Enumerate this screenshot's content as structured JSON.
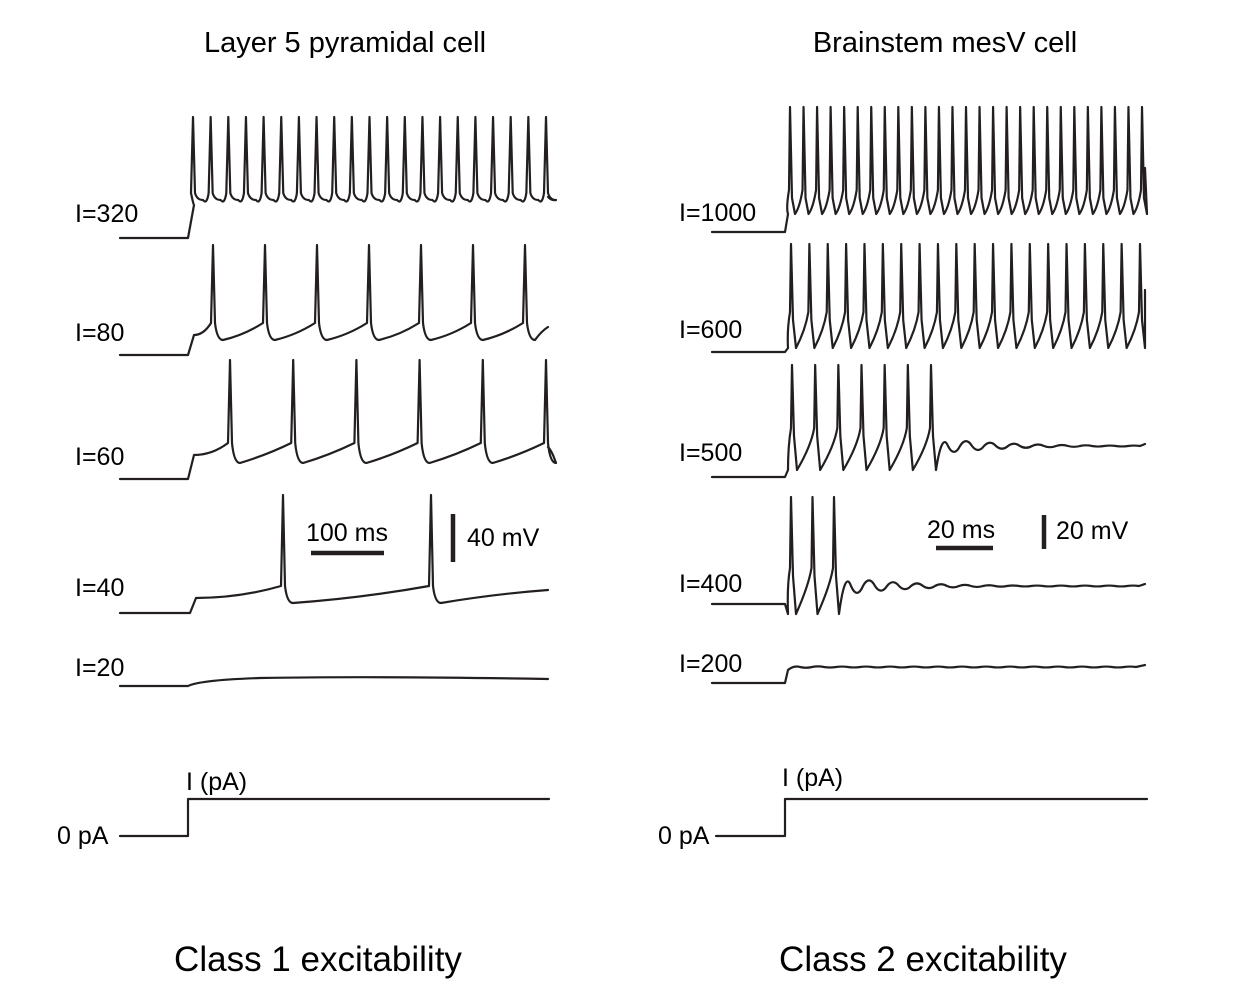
{
  "panels": [
    {
      "title": "Layer 5 pyramidal cell",
      "class_label": "Class 1 excitability",
      "traces": [
        {
          "label": "I=320",
          "spike_count": 21
        },
        {
          "label": "I=80",
          "spike_count": 7
        },
        {
          "label": "I=60",
          "spike_count": 6
        },
        {
          "label": "I=40",
          "spike_count": 2
        },
        {
          "label": "I=20",
          "spike_count": 0
        }
      ],
      "time_scale": "100 ms",
      "voltage_scale": "40 mV",
      "stimulus_zero": "0 pA",
      "stimulus_label": "I (pA)"
    },
    {
      "title": "Brainstem mesV cell",
      "class_label": "Class 2 excitability",
      "traces": [
        {
          "label": "I=1000",
          "spike_count": 27
        },
        {
          "label": "I=600",
          "spike_count": 20
        },
        {
          "label": "I=500",
          "spike_count": 7
        },
        {
          "label": "I=400",
          "spike_count": 3
        },
        {
          "label": "I=200",
          "spike_count": 0
        }
      ],
      "time_scale": "20 ms",
      "voltage_scale": "20 mV",
      "stimulus_zero": "0 pA",
      "stimulus_label": "I (pA)"
    }
  ]
}
